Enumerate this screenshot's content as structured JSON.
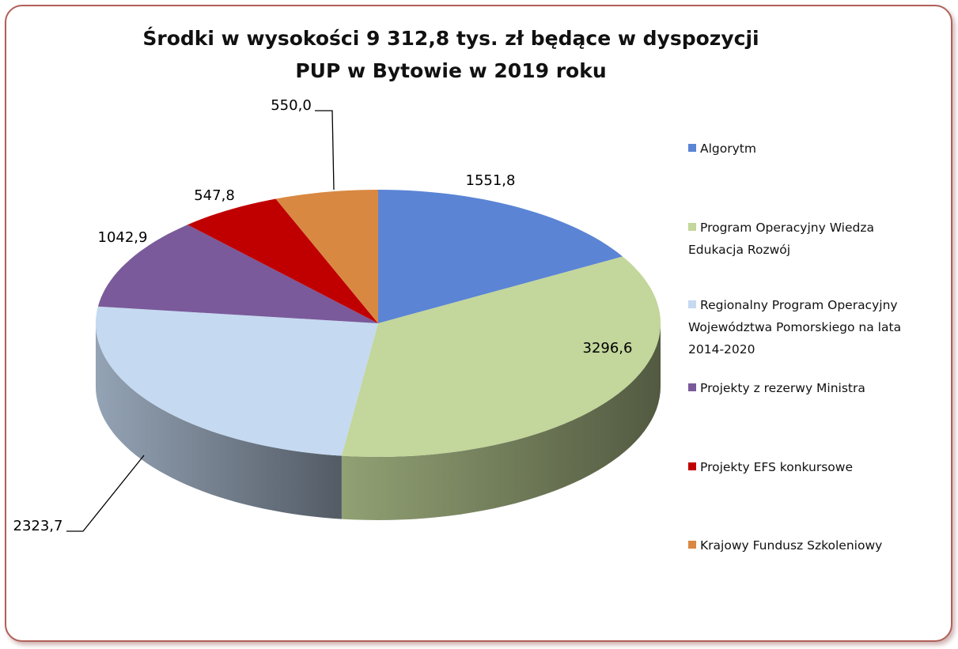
{
  "chart_data": {
    "type": "pie3d",
    "title": [
      "Środki w wysokości 9 312,8 tys. zł będące w dyspozycji",
      "PUP w Bytowie w 2019 roku"
    ],
    "categories": [
      "Algorytm",
      "Program Operacyjny Wiedza Edukacja Rozwój",
      "Regionalny Program Operacyjny Województwa Pomorskiego na lata 2014-2020",
      "Projekty z rezerwy Ministra",
      "Projekty EFS konkursowe",
      "Krajowy Fundusz Szkoleniowy"
    ],
    "values": [
      1551.8,
      3296.6,
      2323.7,
      1042.9,
      547.8,
      550.0
    ],
    "value_labels": [
      "1551,8",
      "3296,6",
      "2323,7",
      "1042,9",
      "547,8",
      "550,0"
    ],
    "colors": [
      "#5b84d4",
      "#c3d69b",
      "#c5d9f1",
      "#7a5a9a",
      "#c00000",
      "#d98842"
    ],
    "legend": "right"
  }
}
